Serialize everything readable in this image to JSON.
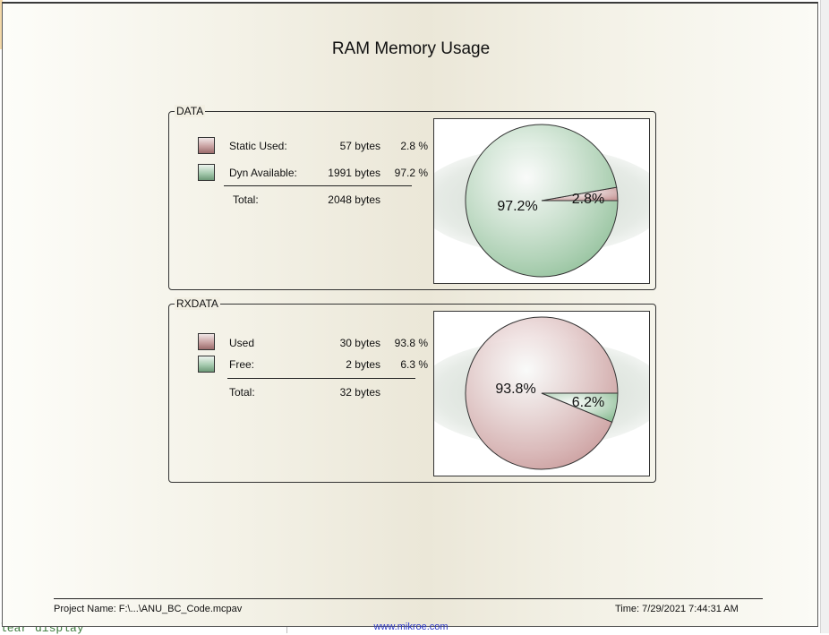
{
  "background": {
    "code_text": "lear display"
  },
  "report": {
    "title": "RAM Memory Usage",
    "footer": {
      "project": "Project Name: F:\\...\\ANU_BC_Code.mcpav",
      "time": "Time: 7/29/2021 7:44:31 AM",
      "url": "www.mikroe.com"
    },
    "groups": [
      {
        "label": "DATA",
        "rows": [
          {
            "label": "Static Used:",
            "bytes": "57 bytes",
            "pct": "2.8 %",
            "color": "red"
          },
          {
            "label": "Dyn Available:",
            "bytes": "1991 bytes",
            "pct": "97.2 %",
            "color": "green"
          }
        ],
        "total_label": "Total:",
        "total_value": "2048 bytes",
        "pie_labels": [
          "97.2%",
          "2.8%"
        ]
      },
      {
        "label": "RXDATA",
        "rows": [
          {
            "label": "Used",
            "bytes": "30 bytes",
            "pct": "93.8 %",
            "color": "red"
          },
          {
            "label": "Free:",
            "bytes": "2 bytes",
            "pct": "6.3 %",
            "color": "green"
          }
        ],
        "total_label": "Total:",
        "total_value": "32 bytes",
        "pie_labels": [
          "93.8%",
          "6.2%"
        ]
      }
    ]
  },
  "chart_data": [
    {
      "type": "pie",
      "categories": [
        "Static Used",
        "Dyn Available"
      ],
      "values": [
        2.8,
        97.2
      ],
      "colors": [
        "#c99a9a",
        "#8fbf98"
      ]
    },
    {
      "type": "pie",
      "categories": [
        "Used",
        "Free"
      ],
      "values": [
        93.8,
        6.2
      ],
      "colors": [
        "#c99a9a",
        "#8fbf98"
      ]
    }
  ]
}
